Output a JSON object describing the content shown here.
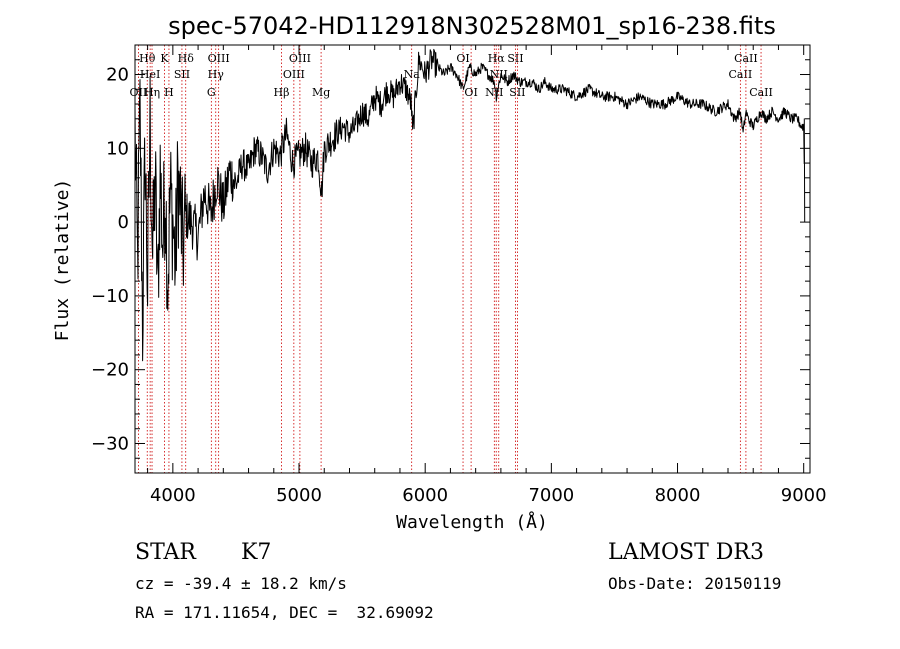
{
  "chart_data": {
    "type": "line",
    "title": "spec-57042-HD112918N302528M01_sp16-238.fits",
    "xlabel": "Wavelength (Å)",
    "ylabel": "Flux (relative)",
    "xlim": [
      3700,
      9050
    ],
    "ylim": [
      -34,
      24
    ],
    "xticks": [
      4000,
      5000,
      6000,
      7000,
      8000,
      9000
    ],
    "yticks": [
      -30,
      -20,
      -10,
      0,
      10,
      20
    ],
    "series": [
      {
        "name": "flux",
        "x": [
          3700,
          3720,
          3740,
          3760,
          3780,
          3800,
          3820,
          3840,
          3860,
          3880,
          3900,
          3920,
          3940,
          3960,
          3980,
          4000,
          4020,
          4040,
          4060,
          4080,
          4100,
          4150,
          4200,
          4250,
          4300,
          4350,
          4400,
          4450,
          4500,
          4550,
          4600,
          4650,
          4700,
          4750,
          4800,
          4850,
          4900,
          4950,
          5000,
          5050,
          5100,
          5150,
          5180,
          5200,
          5250,
          5300,
          5350,
          5400,
          5450,
          5500,
          5550,
          5600,
          5650,
          5700,
          5750,
          5800,
          5850,
          5890,
          5900,
          5950,
          6000,
          6050,
          6100,
          6150,
          6200,
          6250,
          6300,
          6350,
          6400,
          6450,
          6500,
          6550,
          6563,
          6600,
          6650,
          6700,
          6750,
          6800,
          6850,
          6900,
          6950,
          7000,
          7100,
          7200,
          7300,
          7400,
          7500,
          7600,
          7700,
          7800,
          7900,
          8000,
          8100,
          8200,
          8300,
          8400,
          8450,
          8498,
          8520,
          8542,
          8560,
          8600,
          8662,
          8700,
          8750,
          8800,
          8850,
          8900,
          8950,
          8980,
          9000,
          9010
        ],
        "values": [
          13,
          -6,
          15,
          -14,
          10,
          -9,
          14,
          -5,
          6,
          -10,
          7,
          -3,
          5,
          -8,
          4,
          0,
          -6,
          6,
          2,
          -4,
          1,
          0,
          -2,
          4,
          1,
          6,
          2,
          7,
          5,
          8,
          7,
          10,
          9,
          7,
          10,
          9,
          12,
          8,
          9,
          10,
          8,
          9,
          4,
          10,
          11,
          12,
          13,
          12,
          13,
          15,
          14,
          17,
          16,
          18,
          17,
          19,
          18,
          16,
          12,
          22,
          20,
          22,
          21,
          20,
          21,
          20,
          18,
          21,
          20,
          21,
          20,
          19,
          17,
          20,
          19,
          20,
          19,
          19,
          19,
          18,
          19,
          18,
          18,
          17,
          18,
          17,
          17,
          16,
          17,
          16,
          16,
          17,
          16,
          16,
          15,
          16,
          14,
          15,
          12,
          15,
          14,
          13,
          15,
          14,
          15,
          14,
          15,
          14,
          14,
          13,
          13,
          0
        ]
      }
    ],
    "lines": [
      {
        "label": "OII",
        "x": 3727,
        "row": 3
      },
      {
        "label": "Hθ",
        "x": 3797,
        "row": 1
      },
      {
        "label": "HeI",
        "x": 3820,
        "row": 2
      },
      {
        "label": "Hη",
        "x": 3835,
        "row": 3
      },
      {
        "label": "K",
        "x": 3934,
        "row": 1
      },
      {
        "label": "H",
        "x": 3969,
        "row": 3
      },
      {
        "label": "SII",
        "x": 4072,
        "row": 2
      },
      {
        "label": "Hδ",
        "x": 4102,
        "row": 1
      },
      {
        "label": "Hγ",
        "x": 4340,
        "row": 2
      },
      {
        "label": "G",
        "x": 4305,
        "row": 3
      },
      {
        "label": "OIII",
        "x": 4363,
        "row": 1
      },
      {
        "label": "Hβ",
        "x": 4861,
        "row": 3
      },
      {
        "label": "OIII",
        "x": 4959,
        "row": 2
      },
      {
        "label": "OIII",
        "x": 5007,
        "row": 1
      },
      {
        "label": "Mg",
        "x": 5175,
        "row": 3
      },
      {
        "label": "Na",
        "x": 5893,
        "row": 2
      },
      {
        "label": "OI",
        "x": 6300,
        "row": 1
      },
      {
        "label": "OI",
        "x": 6364,
        "row": 3
      },
      {
        "label": "NII",
        "x": 6548,
        "row": 3
      },
      {
        "label": "Hα",
        "x": 6563,
        "row": 1
      },
      {
        "label": "NII",
        "x": 6583,
        "row": 2
      },
      {
        "label": "SII",
        "x": 6716,
        "row": 1
      },
      {
        "label": "SII",
        "x": 6731,
        "row": 3
      },
      {
        "label": "CaII",
        "x": 8498,
        "row": 2
      },
      {
        "label": "CaII",
        "x": 8542,
        "row": 1
      },
      {
        "label": "CaII",
        "x": 8662,
        "row": 3
      }
    ]
  },
  "info": {
    "object_class": "STAR",
    "subclass": "K7",
    "survey": "LAMOST DR3",
    "cz": "cz = -39.4 ± 18.2 km/s",
    "obs_date": "Obs-Date: 20150119",
    "coords": "RA = 171.11654, DEC =  32.69092"
  },
  "colors": {
    "line_marker": "#cc0000",
    "spectrum": "#000000",
    "axis": "#000000"
  }
}
